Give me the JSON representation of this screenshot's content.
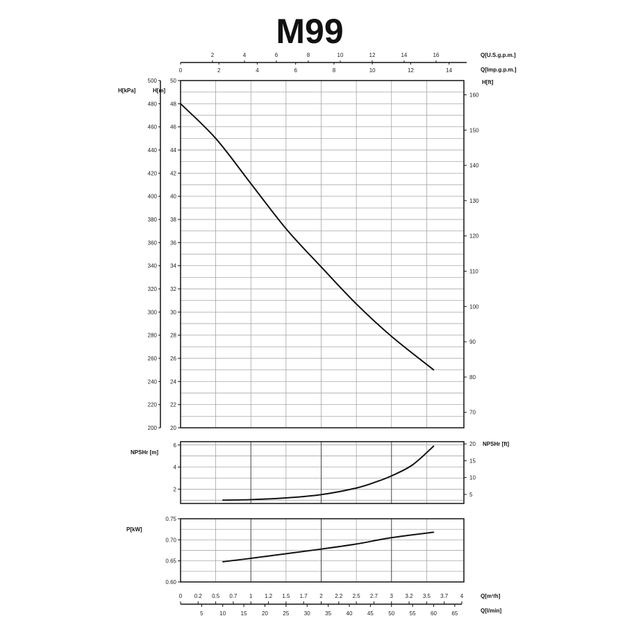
{
  "chart_data": {
    "type": "line",
    "title": "M99",
    "x_axes": {
      "primary": {
        "label": "Q[m³/h]",
        "range": [
          0,
          4
        ],
        "tick_labels": [
          "0",
          "0.2",
          "0.5",
          "0.7",
          "1",
          "1.2",
          "1.5",
          "1.7",
          "2",
          "2.2",
          "2.5",
          "2.7",
          "3",
          "3.2",
          "3.5",
          "3.7",
          "4"
        ]
      },
      "l_min": {
        "label": "Q[l/min]",
        "tick_labels": [
          "5",
          "10",
          "15",
          "20",
          "25",
          "30",
          "35",
          "40",
          "45",
          "50",
          "55",
          "60",
          "65"
        ]
      },
      "us_gpm": {
        "label": "Q[U.S.g.p.m.]",
        "tick_labels": [
          "2",
          "4",
          "6",
          "8",
          "10",
          "12",
          "14",
          "16"
        ]
      },
      "imp_gpm": {
        "label": "Q[Imp.g.p.m.]",
        "tick_labels": [
          "0",
          "2",
          "4",
          "6",
          "8",
          "10",
          "12",
          "14"
        ]
      }
    },
    "panels": [
      {
        "id": "head",
        "ylabel": "H[m]",
        "ylim": [
          20,
          50
        ],
        "y_tick_labels": [
          "20",
          "22",
          "24",
          "26",
          "28",
          "30",
          "32",
          "34",
          "36",
          "38",
          "40",
          "42",
          "44",
          "46",
          "48",
          "50"
        ],
        "secondary_left": {
          "label": "H[kPa]",
          "tick_labels": [
            "200",
            "220",
            "240",
            "260",
            "280",
            "300",
            "320",
            "340",
            "360",
            "380",
            "400",
            "420",
            "440",
            "460",
            "480",
            "500"
          ]
        },
        "secondary_right": {
          "label": "H[ft]",
          "tick_labels": [
            "70",
            "80",
            "90",
            "100",
            "110",
            "120",
            "130",
            "140",
            "150",
            "160"
          ]
        },
        "series": [
          {
            "x": [
              0,
              0.5,
              1,
              1.5,
              2,
              2.5,
              3,
              3.6
            ],
            "y": [
              48,
              45,
              41.1,
              37.2,
              33.9,
              30.7,
              27.9,
              25
            ]
          }
        ]
      },
      {
        "id": "npsh",
        "ylabel": "NPSHr [m]",
        "ylim": [
          0.7,
          6.3
        ],
        "y_tick_labels": [
          "2",
          "4",
          "6"
        ],
        "secondary_right": {
          "label": "NPSHr [ft]",
          "tick_labels": [
            "5",
            "10",
            "15",
            "20"
          ]
        },
        "series": [
          {
            "x": [
              0.6,
              1,
              1.5,
              2,
              2.5,
              2.8,
              3,
              3.3,
              3.6
            ],
            "y": [
              1.0,
              1.05,
              1.2,
              1.5,
              2.1,
              2.7,
              3.2,
              4.2,
              5.9
            ]
          }
        ]
      },
      {
        "id": "power",
        "ylabel": "P[kW]",
        "ylim": [
          0.6,
          0.75
        ],
        "y_tick_labels": [
          "0.60",
          "0.65",
          "0.70",
          "0.75"
        ],
        "series": [
          {
            "x": [
              0.6,
              1,
              1.5,
              2,
              2.5,
              3,
              3.6
            ],
            "y": [
              0.648,
              0.656,
              0.667,
              0.678,
              0.69,
              0.705,
              0.718
            ]
          }
        ]
      }
    ],
    "grid": true,
    "colors": {
      "curve": "#111111",
      "grid": "#999999",
      "frame": "#111111"
    }
  }
}
